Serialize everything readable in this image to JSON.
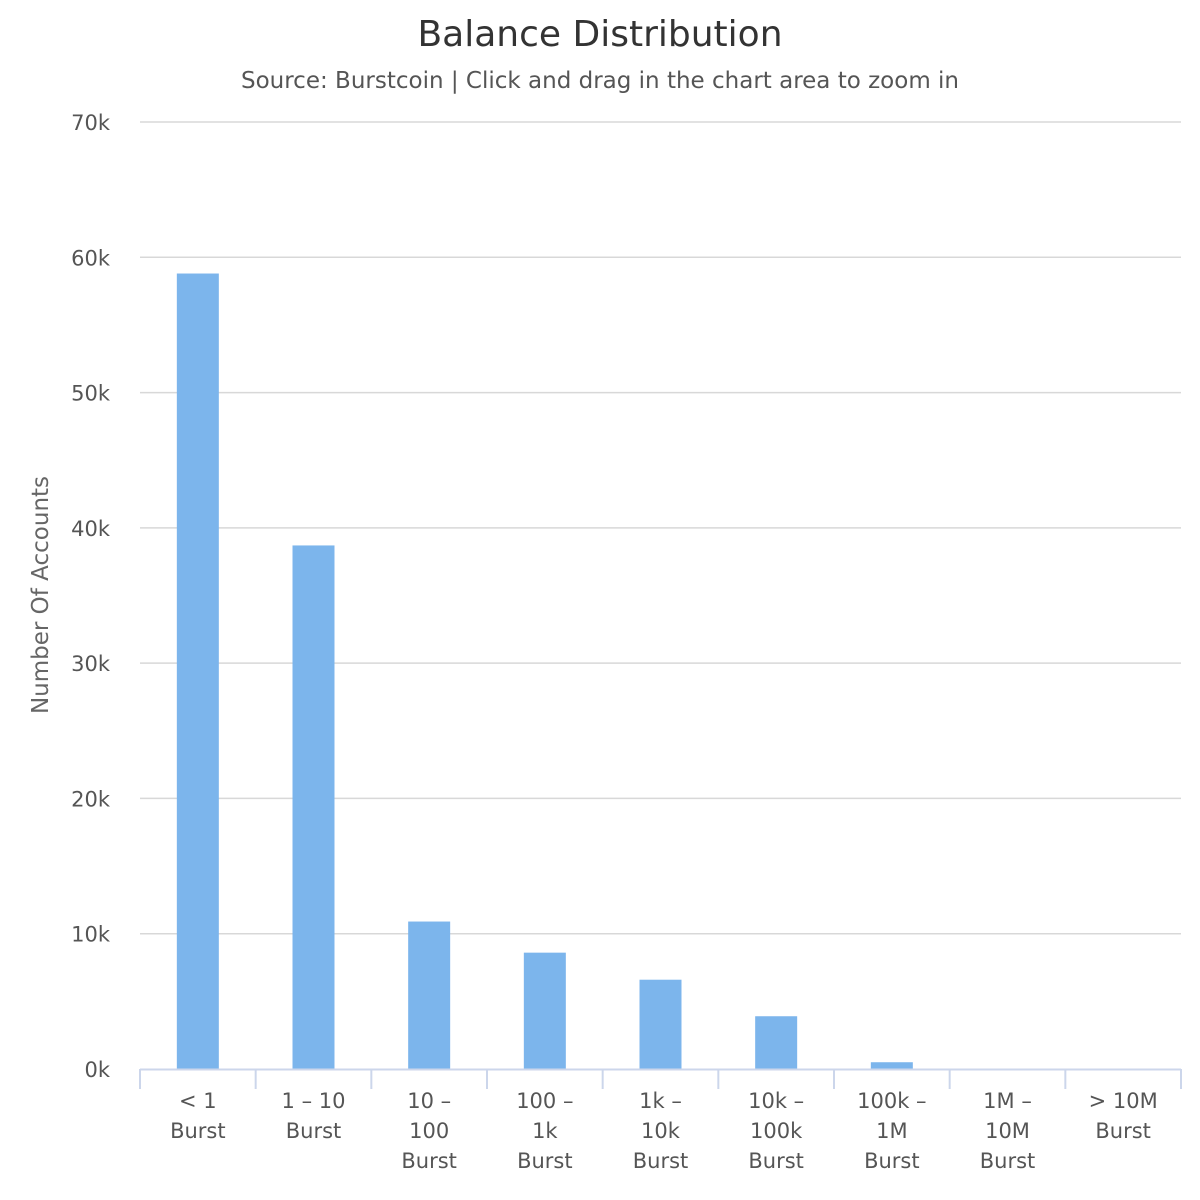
{
  "chart_data": {
    "type": "bar",
    "title": "Balance Distribution",
    "subtitle": "Source: Burstcoin | Click and drag in the chart area to zoom in",
    "xlabel": "",
    "ylabel": "Number Of Accounts",
    "categories": [
      [
        "< 1",
        "Burst"
      ],
      [
        "1 – 10",
        "Burst"
      ],
      [
        "10 –",
        "100",
        "Burst"
      ],
      [
        "100 –",
        "1k",
        "Burst"
      ],
      [
        "1k –",
        "10k",
        "Burst"
      ],
      [
        "10k –",
        "100k",
        "Burst"
      ],
      [
        "100k –",
        "1M",
        "Burst"
      ],
      [
        "1M –",
        "10M",
        "Burst"
      ],
      [
        "> 10M",
        "Burst"
      ]
    ],
    "values": [
      58800,
      38700,
      10900,
      8600,
      6600,
      3900,
      500,
      0,
      0
    ],
    "ylim": [
      0,
      70000
    ],
    "yticks": [
      0,
      10000,
      20000,
      30000,
      40000,
      50000,
      60000,
      70000
    ],
    "ytick_labels": [
      "0k",
      "10k",
      "20k",
      "30k",
      "40k",
      "50k",
      "60k",
      "70k"
    ],
    "grid": true,
    "legend": "none",
    "bar_color": "#7cb5ec",
    "grid_color": "#d8d8d8",
    "axis_color": "#ccd6eb"
  }
}
